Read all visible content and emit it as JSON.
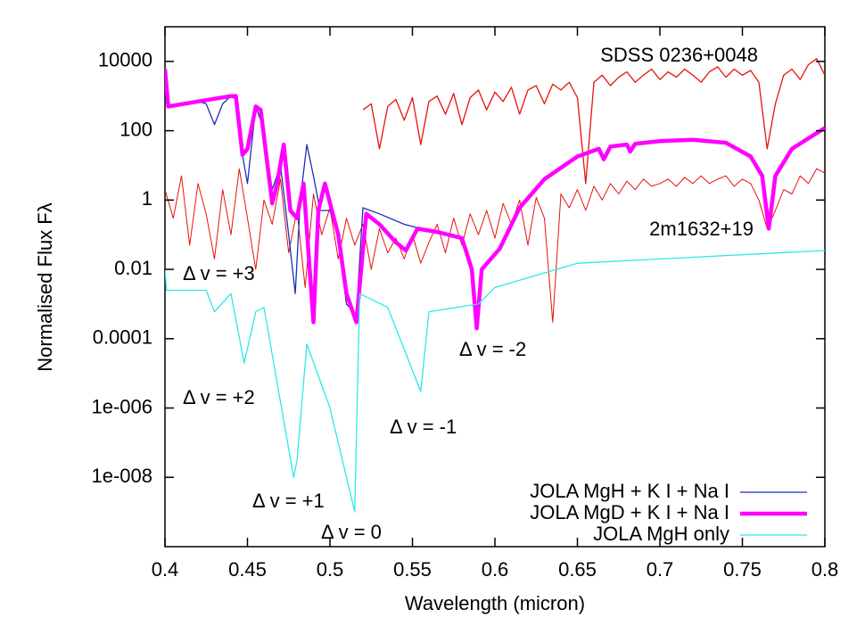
{
  "chart_data": {
    "type": "line",
    "y_label": "Normalised Flux Fλ",
    "x_label": "Wavelength (micron)",
    "xlim": [
      0.4,
      0.8
    ],
    "xticks": [
      0.4,
      0.45,
      0.5,
      0.55,
      0.6,
      0.65,
      0.7,
      0.75,
      0.8
    ],
    "ylim": [
      1e-10,
      100000
    ],
    "yscale": "log",
    "yticks": [
      10000,
      100,
      1,
      0.01,
      0.0001,
      {
        "value": 1e-06,
        "label": "1e-006"
      },
      {
        "value": 1e-08,
        "label": "1e-008"
      }
    ],
    "legend": "lower right",
    "annotations": [
      "Δ v = +3",
      "Δ v = +2",
      "Δ v = +1",
      "Δ v = 0",
      "Δ v = -1",
      "Δ v = -2"
    ],
    "series": [
      {
        "name": "SDSS 0236+0048",
        "color": "#e8120c",
        "line_width": 1.3,
        "x": [
          0.52,
          0.525,
          0.53,
          0.535,
          0.54,
          0.545,
          0.55,
          0.555,
          0.56,
          0.565,
          0.57,
          0.575,
          0.58,
          0.585,
          0.59,
          0.595,
          0.6,
          0.605,
          0.61,
          0.615,
          0.62,
          0.625,
          0.63,
          0.635,
          0.64,
          0.645,
          0.65,
          0.655,
          0.66,
          0.665,
          0.67,
          0.675,
          0.68,
          0.685,
          0.69,
          0.695,
          0.7,
          0.705,
          0.71,
          0.715,
          0.72,
          0.725,
          0.73,
          0.735,
          0.74,
          0.745,
          0.75,
          0.755,
          0.76,
          0.765,
          0.77,
          0.775,
          0.78,
          0.785,
          0.79,
          0.795,
          0.8
        ],
        "values": [
          400,
          600,
          30,
          500,
          800,
          200,
          900,
          40,
          700,
          1000,
          300,
          1200,
          150,
          900,
          1500,
          400,
          1300,
          700,
          1800,
          300,
          1500,
          2000,
          600,
          2200,
          1500,
          2500,
          900,
          3,
          2500,
          4000,
          2000,
          3500,
          5000,
          2500,
          4000,
          6000,
          3000,
          5000,
          3500,
          6000,
          4000,
          2500,
          5000,
          7000,
          3500,
          6000,
          4000,
          5500,
          2500,
          30,
          600,
          4000,
          6000,
          3000,
          8000,
          12000,
          4000
        ]
      },
      {
        "name": "2m1632+19",
        "color": "#e8120c",
        "line_width": 1,
        "x": [
          0.4,
          0.405,
          0.41,
          0.415,
          0.42,
          0.425,
          0.43,
          0.435,
          0.44,
          0.445,
          0.45,
          0.455,
          0.46,
          0.465,
          0.47,
          0.475,
          0.48,
          0.485,
          0.49,
          0.495,
          0.5,
          0.505,
          0.51,
          0.515,
          0.52,
          0.525,
          0.53,
          0.535,
          0.54,
          0.545,
          0.55,
          0.555,
          0.56,
          0.565,
          0.57,
          0.575,
          0.58,
          0.585,
          0.59,
          0.595,
          0.6,
          0.605,
          0.61,
          0.615,
          0.62,
          0.625,
          0.63,
          0.635,
          0.64,
          0.645,
          0.65,
          0.655,
          0.66,
          0.665,
          0.67,
          0.675,
          0.68,
          0.685,
          0.69,
          0.695,
          0.7,
          0.705,
          0.71,
          0.715,
          0.72,
          0.725,
          0.73,
          0.735,
          0.74,
          0.745,
          0.75,
          0.755,
          0.76,
          0.765,
          0.77,
          0.775,
          0.78,
          0.785,
          0.79,
          0.795,
          0.8
        ],
        "values": [
          2,
          0.3,
          5,
          0.05,
          3,
          0.4,
          0.02,
          2,
          0.1,
          8,
          0.3,
          0.01,
          1,
          0.2,
          4,
          0.03,
          0.5,
          0.003,
          1.5,
          0.1,
          0.6,
          0.02,
          0.3,
          0.05,
          0.2,
          0.01,
          0.15,
          0.03,
          0.08,
          0.02,
          0.1,
          0.015,
          0.06,
          0.2,
          0.03,
          0.3,
          0.05,
          0.4,
          0.1,
          0.5,
          0.08,
          0.8,
          0.2,
          1,
          0.05,
          1.2,
          0.3,
          0.0003,
          1.5,
          0.6,
          2,
          0.5,
          2.5,
          1,
          3,
          1.5,
          3.5,
          2,
          4,
          2.5,
          3,
          4,
          2.5,
          4.5,
          3,
          5,
          3,
          4,
          5,
          2.5,
          4,
          3,
          1,
          0.15,
          0.5,
          2,
          1.5,
          5,
          3,
          8,
          6
        ]
      },
      {
        "name": "JOLA MgH + K I + Na I",
        "color": "#1a2fb8",
        "line_width": 1.3,
        "x": [
          0.4,
          0.402,
          0.42,
          0.425,
          0.43,
          0.435,
          0.44,
          0.443,
          0.447,
          0.45,
          0.455,
          0.458,
          0.465,
          0.47,
          0.475,
          0.479,
          0.482,
          0.486,
          0.49,
          0.494,
          0.5,
          0.505,
          0.51,
          0.516,
          0.52,
          0.53,
          0.545,
          0.555,
          0.565
        ],
        "values": [
          6000,
          500,
          700,
          600,
          150,
          600,
          1000,
          800,
          20,
          3,
          500,
          200,
          2,
          10,
          0.1,
          0.002,
          1,
          40,
          5,
          0.5,
          0.5,
          0.08,
          0.001,
          0.0005,
          0.6,
          0.4,
          0.2,
          0.15,
          0.12
        ]
      },
      {
        "name": "JOLA MgD + K I + Na I",
        "color": "#ff00ff",
        "line_width": 4.5,
        "x": [
          0.4,
          0.402,
          0.42,
          0.44,
          0.443,
          0.447,
          0.45,
          0.455,
          0.458,
          0.465,
          0.468,
          0.472,
          0.476,
          0.48,
          0.484,
          0.49,
          0.493,
          0.497,
          0.505,
          0.51,
          0.516,
          0.522,
          0.53,
          0.54,
          0.546,
          0.553,
          0.565,
          0.58,
          0.586,
          0.589,
          0.592,
          0.603,
          0.615,
          0.63,
          0.65,
          0.663,
          0.666,
          0.67,
          0.68,
          0.682,
          0.685,
          0.7,
          0.72,
          0.74,
          0.755,
          0.762,
          0.766,
          0.77,
          0.78,
          0.79,
          0.8
        ],
        "values": [
          6000,
          500,
          700,
          1000,
          1000,
          20,
          30,
          500,
          400,
          0.8,
          3,
          40,
          0.5,
          0.3,
          3,
          0.0003,
          0.5,
          3,
          0.1,
          0.002,
          0.0003,
          0.4,
          0.2,
          0.06,
          0.035,
          0.15,
          0.12,
          0.08,
          0.01,
          0.0002,
          0.01,
          0.04,
          0.6,
          4,
          18,
          30,
          15,
          35,
          40,
          25,
          42,
          50,
          55,
          45,
          18,
          5,
          0.15,
          5,
          30,
          60,
          120
        ]
      },
      {
        "name": "JOLA MgH only",
        "color": "#2de8e8",
        "line_width": 1.3,
        "x": [
          0.4,
          0.401,
          0.425,
          0.43,
          0.44,
          0.448,
          0.455,
          0.46,
          0.478,
          0.48,
          0.486,
          0.5,
          0.515,
          0.518,
          0.535,
          0.555,
          0.56,
          0.59,
          0.6,
          0.65,
          0.7,
          0.8
        ],
        "values": [
          0.01,
          0.0025,
          0.0025,
          0.0006,
          0.002,
          2e-05,
          0.0006,
          0.0008,
          1e-08,
          3e-08,
          7e-05,
          1e-06,
          1e-09,
          0.002,
          0.0008,
          3e-06,
          0.0006,
          0.001,
          0.003,
          0.015,
          0.02,
          0.035
        ]
      }
    ]
  }
}
